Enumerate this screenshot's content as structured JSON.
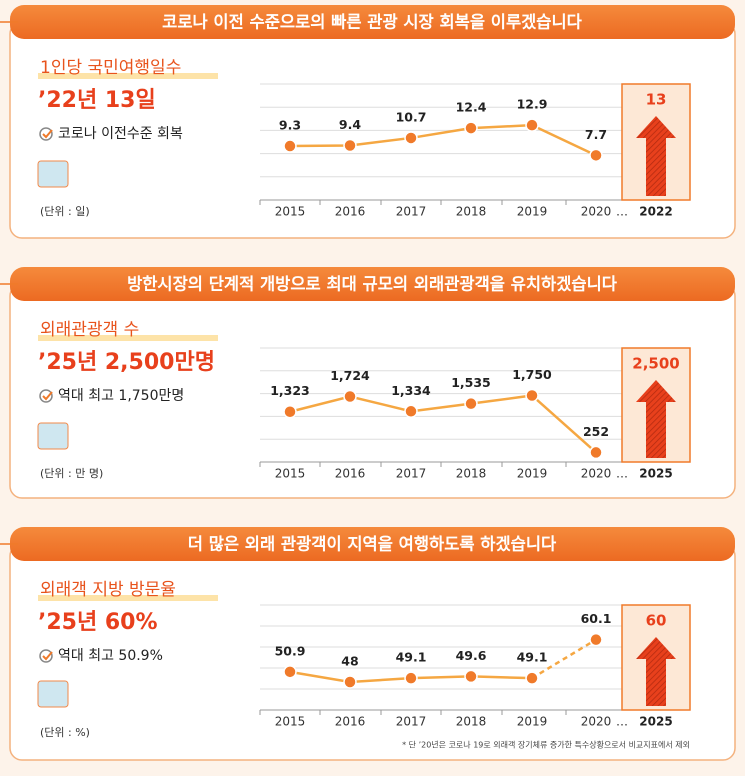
{
  "chart_data": [
    {
      "type": "line",
      "title": "코로나 이전 수준으로의 빠른 관광 시장 회복을 이루겠습니다",
      "subtitle": "1인당 국민여행일수",
      "headline": "’22년 13일",
      "note": "코로나 이전수준 회복",
      "unit_label": "(단위 : 일)",
      "categories": [
        "2015",
        "2016",
        "2017",
        "2018",
        "2019",
        "2020"
      ],
      "values": [
        9.3,
        9.4,
        10.7,
        12.4,
        12.9,
        7.7
      ],
      "gap_label": "…",
      "target_category": "2022",
      "target_value": 13,
      "color": "#f5a742",
      "marker_color": "#f07a2a",
      "ylim": [
        0,
        20
      ],
      "yticks": [
        4,
        8,
        12,
        16,
        20
      ],
      "grid": true
    },
    {
      "type": "line",
      "title": "방한시장의 단계적 개방으로 최대 규모의 외래관광객을 유치하겠습니다",
      "subtitle": "외래관광객 수",
      "headline": "’25년 2,500만명",
      "note": "역대 최고 1,750만명",
      "unit_label": "(단위 : 만 명)",
      "categories": [
        "2015",
        "2016",
        "2017",
        "2018",
        "2019",
        "2020"
      ],
      "values": [
        1323,
        1724,
        1334,
        1535,
        1750,
        252
      ],
      "value_labels": [
        "1,323",
        "1,724",
        "1,334",
        "1,535",
        "1,750",
        "252"
      ],
      "gap_label": "…",
      "target_category": "2025",
      "target_value": 2500,
      "target_label": "2,500",
      "color": "#f5a742",
      "marker_color": "#f07a2a",
      "ylim": [
        0,
        3000
      ],
      "yticks": [
        600,
        1200,
        1800,
        2400,
        3000
      ],
      "grid": true
    },
    {
      "type": "line",
      "title": "더 많은 외래 관광객이 지역을 여행하도록 하겠습니다",
      "subtitle": "외래객 지방 방문율",
      "headline": "’25년 60%",
      "note": "역대 최고 50.9%",
      "unit_label": "(단위 : %)",
      "categories": [
        "2015",
        "2016",
        "2017",
        "2018",
        "2019",
        "2020"
      ],
      "values": [
        50.9,
        48,
        49.1,
        49.6,
        49.1,
        60.1
      ],
      "gap_label": "…",
      "target_category": "2025",
      "target_value": 60,
      "dash_from": 4,
      "color": "#f5a742",
      "marker_color": "#f07a2a",
      "ylim": [
        40,
        70
      ],
      "yticks": [
        46,
        52,
        58,
        64,
        70
      ],
      "grid": true,
      "footnote": "* 단 ’20년은 코로나 19로 외래객 장기체류 증가한 특수상황으로서 비교지표에서 제외"
    }
  ]
}
